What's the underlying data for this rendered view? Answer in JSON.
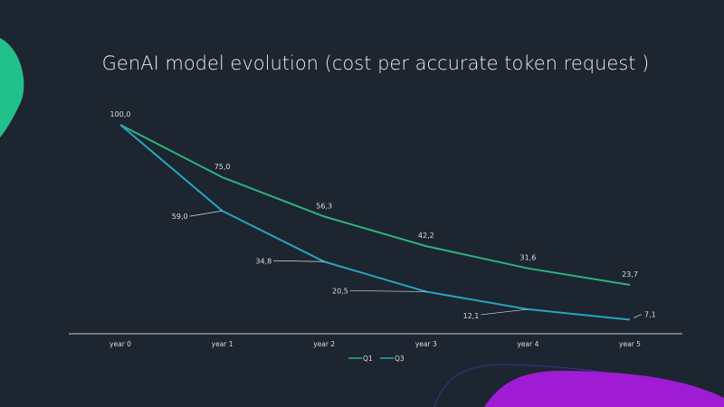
{
  "chart_data": {
    "type": "line",
    "title": "GenAI model evolution (cost per accurate token request )",
    "categories": [
      "year 0",
      "year 1",
      "year 2",
      "year 3",
      "year 4",
      "year 5"
    ],
    "series": [
      {
        "name": "Q1",
        "color": "#2db37f",
        "values": [
          100.0,
          75.0,
          56.3,
          42.2,
          31.6,
          23.7
        ],
        "labels": [
          "100,0",
          "75,0",
          "56,3",
          "42,2",
          "31,6",
          "23,7"
        ]
      },
      {
        "name": "Q3",
        "color": "#25a7bf",
        "values": [
          100.0,
          59.0,
          34.8,
          20.5,
          12.1,
          7.1
        ],
        "labels": [
          "100,0",
          "59,0",
          "34,8",
          "20,5",
          "12,1",
          "7,1"
        ]
      }
    ],
    "xlabel": "",
    "ylabel": "",
    "ylim": [
      0,
      100
    ],
    "grid": false,
    "legend": "bottom-center"
  },
  "decor": {
    "left_blob": "#22c08a",
    "purple_blob": "#a01bd4",
    "outline": "#2e3a8c"
  }
}
